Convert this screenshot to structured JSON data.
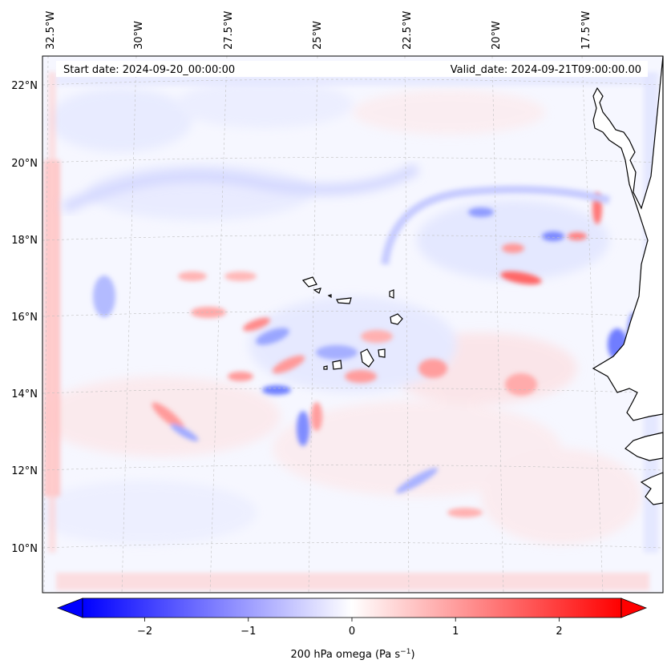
{
  "header": {
    "start_date": "Start date: 2024-09-20_00:00:00",
    "valid_date": "Valid_date: 2024-09-21T09:00:00.00"
  },
  "axes": {
    "lon_labels": [
      "32.5°W",
      "30°W",
      "27.5°W",
      "25°W",
      "22.5°W",
      "20°W",
      "17.5°W"
    ],
    "lat_labels": [
      "22°N",
      "20°N",
      "18°N",
      "16°N",
      "14°N",
      "12°N",
      "10°N"
    ]
  },
  "colorbar": {
    "ticks": [
      "−2",
      "−1",
      "0",
      "1",
      "2"
    ],
    "label_main": "200 hPa omega (Pa s",
    "label_sup": "−1",
    "label_end": ")",
    "min": -2.6,
    "max": 2.6,
    "cmap": "bwr",
    "color_negative": "#0000ff",
    "color_zero": "#ffffff",
    "color_positive": "#ff0000"
  },
  "map": {
    "land_fill": "#ffffff",
    "coast_color": "#000000",
    "grid_color": "#b0b0b0"
  }
}
